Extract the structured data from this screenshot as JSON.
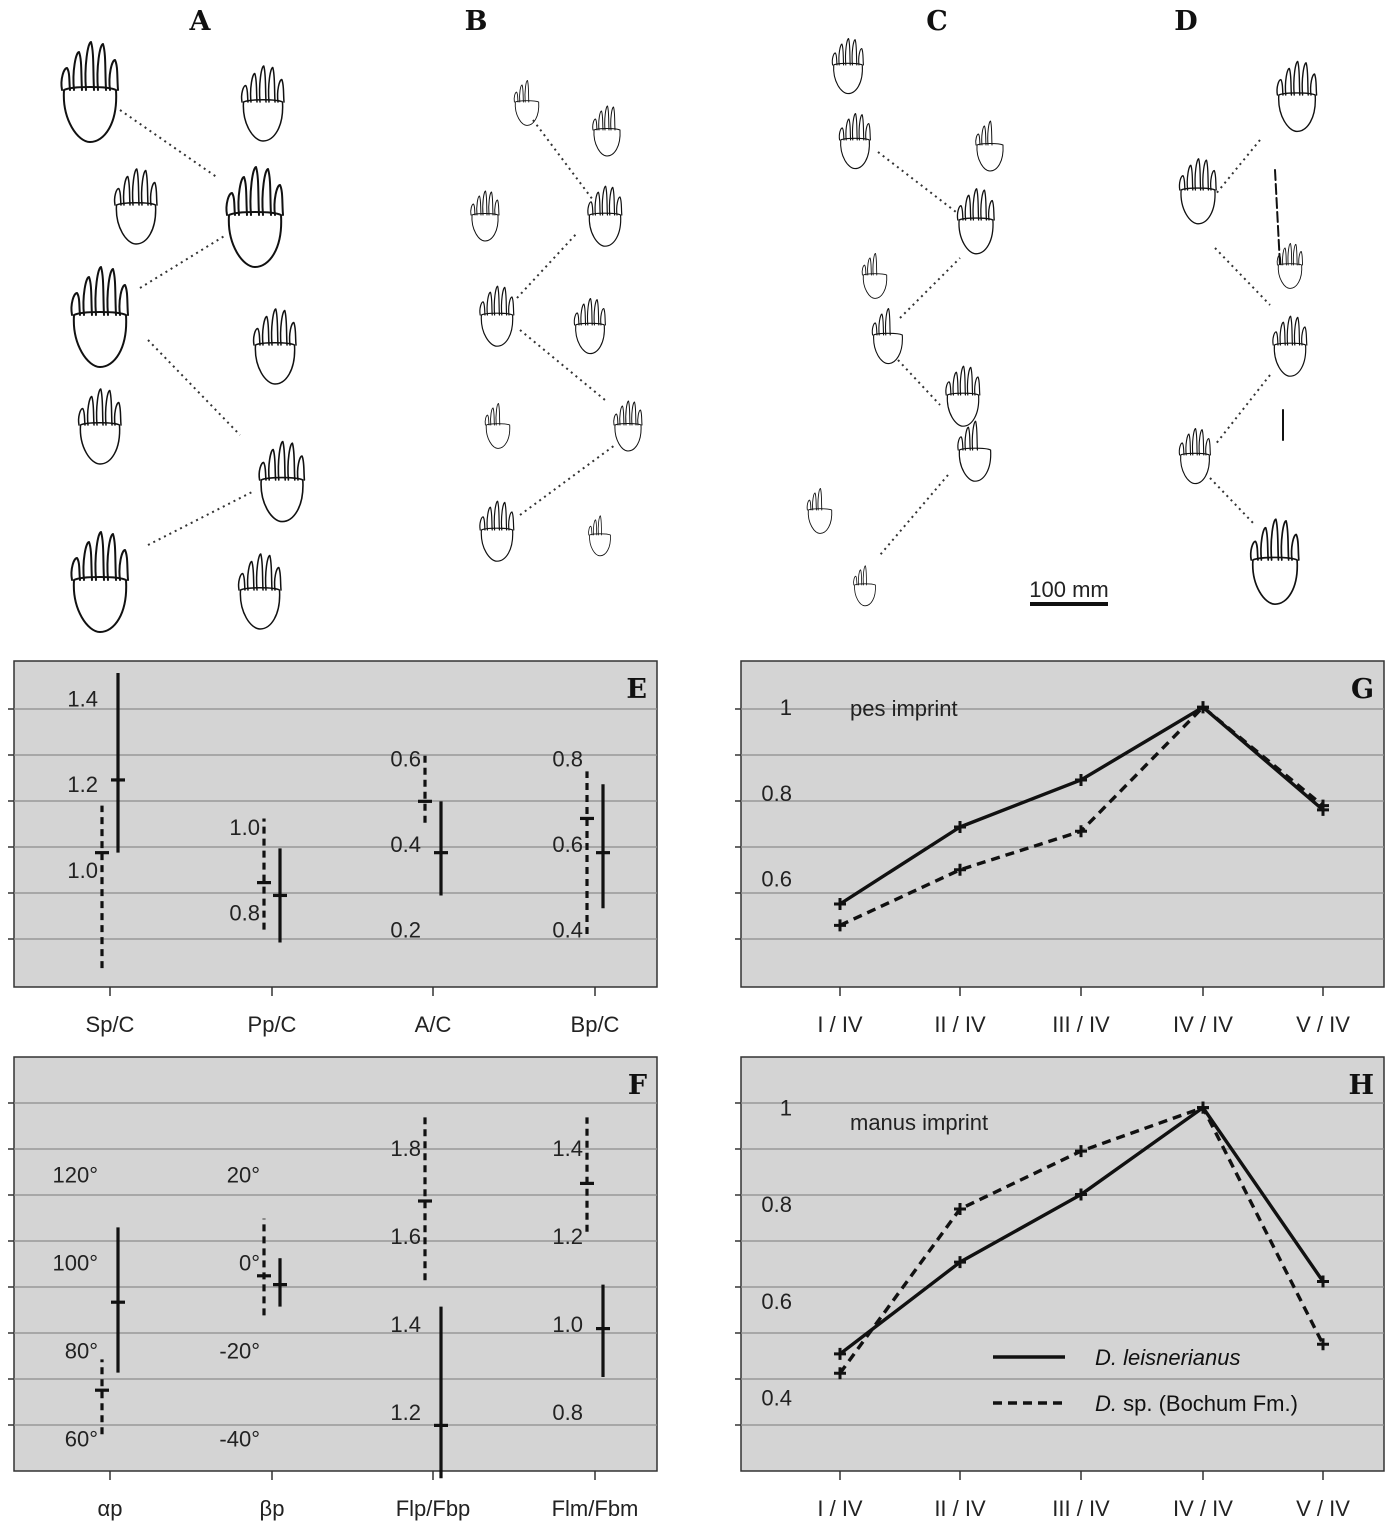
{
  "panels": {
    "A": "A",
    "B": "B",
    "C": "C",
    "D": "D",
    "E": "E",
    "F": "F",
    "G": "G",
    "H": "H"
  },
  "scale_bar": {
    "label": "100 mm"
  },
  "chart_data": [
    {
      "panel": "E",
      "type": "errorbar",
      "categories": [
        "Sp/C",
        "Pp/C",
        "A/C",
        "Bp/C"
      ],
      "axes": [
        {
          "ticks": [
            "1.4",
            "1.2",
            "1.0"
          ],
          "tick_values": [
            1.4,
            1.2,
            1.0
          ],
          "ylim": [
            0.74,
            1.46
          ]
        },
        {
          "ticks": [
            "1.0",
            "0.8"
          ],
          "tick_values": [
            1.0,
            0.8
          ],
          "ylim": [
            0.64,
            1.36
          ]
        },
        {
          "ticks": [
            "0.6",
            "0.4",
            "0.2"
          ],
          "tick_values": [
            0.6,
            0.4,
            0.2
          ],
          "ylim": [
            0.08,
            0.8
          ]
        },
        {
          "ticks": [
            "0.8",
            "0.6",
            "0.4"
          ],
          "tick_values": [
            0.8,
            0.6,
            0.4
          ],
          "ylim": [
            0.28,
            1.0
          ]
        }
      ],
      "series": [
        {
          "style": "dashed",
          "values": [
            {
              "mean": 1.04,
              "min": 0.77,
              "max": 1.15
            },
            {
              "mean": 0.87,
              "min": 0.76,
              "max": 1.02
            },
            {
              "mean": 0.5,
              "min": 0.45,
              "max": 0.61
            },
            {
              "mean": 0.66,
              "min": 0.39,
              "max": 0.77
            }
          ]
        },
        {
          "style": "solid",
          "values": [
            {
              "mean": 1.21,
              "min": 1.04,
              "max": 1.46
            },
            {
              "mean": 0.84,
              "min": 0.73,
              "max": 0.95
            },
            {
              "mean": 0.38,
              "min": 0.28,
              "max": 0.5
            },
            {
              "mean": 0.58,
              "min": 0.45,
              "max": 0.74
            }
          ]
        }
      ]
    },
    {
      "panel": "F",
      "type": "errorbar",
      "categories": [
        "αp",
        "βp",
        "Flp/Fbp",
        "Flm/Fbm"
      ],
      "axes": [
        {
          "ticks": [
            "120°",
            "100°",
            "80°",
            "60°"
          ],
          "tick_values": [
            120,
            100,
            80,
            60
          ],
          "ylim": [
            54,
            144
          ]
        },
        {
          "ticks": [
            "20°",
            "0°",
            "-20°",
            "-40°"
          ],
          "tick_values": [
            20,
            0,
            -20,
            -40
          ],
          "ylim": [
            -46,
            44
          ]
        },
        {
          "ticks": [
            "1.8",
            "1.6",
            "1.4",
            "1.2"
          ],
          "tick_values": [
            1.8,
            1.6,
            1.4,
            1.2
          ],
          "ylim": [
            1.08,
            1.98
          ]
        },
        {
          "ticks": [
            "1.4",
            "1.2",
            "1.0",
            "0.8"
          ],
          "tick_values": [
            1.4,
            1.2,
            1.0,
            0.8
          ],
          "ylim": [
            0.68,
            1.58
          ]
        }
      ],
      "series": [
        {
          "style": "dashed",
          "values": [
            {
              "mean": 71,
              "min": 61,
              "max": 78
            },
            {
              "mean": -3,
              "min": -12,
              "max": 10
            },
            {
              "mean": 1.68,
              "min": 1.5,
              "max": 1.87
            },
            {
              "mean": 1.32,
              "min": 1.21,
              "max": 1.47
            }
          ]
        },
        {
          "style": "solid",
          "values": [
            {
              "mean": 91,
              "min": 75,
              "max": 108
            },
            {
              "mean": -5,
              "min": -10,
              "max": 1
            },
            {
              "mean": 1.17,
              "min": 1.05,
              "max": 1.44
            },
            {
              "mean": 0.99,
              "min": 0.88,
              "max": 1.09
            }
          ]
        }
      ]
    },
    {
      "panel": "G",
      "type": "line",
      "annotation": "pes imprint",
      "categories": [
        "I / IV",
        "II / IV",
        "III / IV",
        "IV / IV",
        "V / IV"
      ],
      "yticks": [
        "1",
        "0.8",
        "0.6"
      ],
      "ytick_values": [
        1,
        0.8,
        0.6
      ],
      "ylim": [
        0.36,
        1.08
      ],
      "series": [
        {
          "style": "solid",
          "values": [
            0.54,
            0.72,
            0.83,
            1.0,
            0.76
          ]
        },
        {
          "style": "dashed",
          "values": [
            0.49,
            0.62,
            0.71,
            1.0,
            0.77
          ]
        }
      ]
    },
    {
      "panel": "H",
      "type": "line",
      "annotation": "manus imprint",
      "categories": [
        "I / IV",
        "II / IV",
        "III / IV",
        "IV / IV",
        "V / IV"
      ],
      "yticks": [
        "1",
        "0.8",
        "0.6",
        "0.4"
      ],
      "ytick_values": [
        1,
        0.8,
        0.6,
        0.4
      ],
      "ylim": [
        0.26,
        1.08
      ],
      "series": [
        {
          "name": "D. leisnerianus",
          "style": "solid",
          "values": [
            0.49,
            0.68,
            0.82,
            1.0,
            0.64
          ]
        },
        {
          "name": "D. sp. (Bochum Fm.)",
          "style": "dashed",
          "values": [
            0.45,
            0.79,
            0.91,
            1.0,
            0.51
          ]
        }
      ],
      "legend": [
        {
          "prefix": "D.",
          "rest": " leisnerianus"
        },
        {
          "prefix": "D.",
          "rest": " sp. (Bochum Fm.)"
        }
      ]
    }
  ]
}
